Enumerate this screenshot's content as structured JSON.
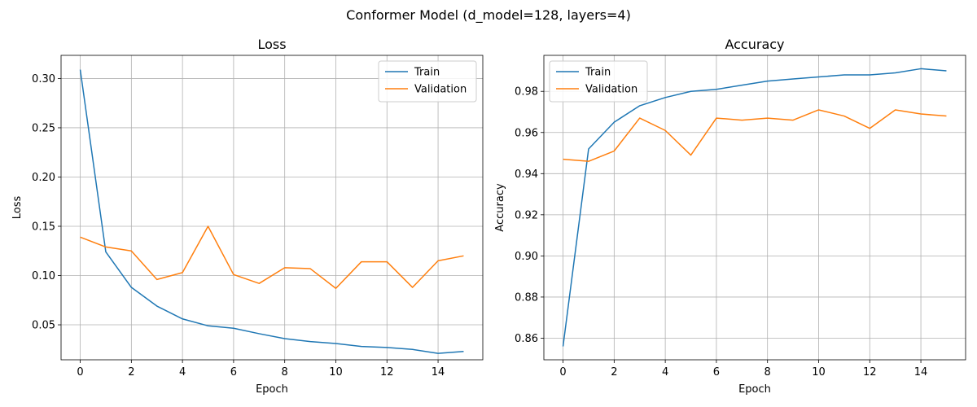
{
  "figure_title": "Conformer Model (d_model=128, layers=4)",
  "chart_data": [
    {
      "type": "line",
      "title": "Loss",
      "xlabel": "Epoch",
      "ylabel": "Loss",
      "x": [
        0,
        1,
        2,
        3,
        4,
        5,
        6,
        7,
        8,
        9,
        10,
        11,
        12,
        13,
        14,
        15
      ],
      "xlim": [
        -0.75,
        15.75
      ],
      "ylim": [
        0.0145,
        0.3235
      ],
      "xticks": [
        0,
        2,
        4,
        6,
        8,
        10,
        12,
        14
      ],
      "yticks": [
        0.05,
        0.1,
        0.15,
        0.2,
        0.25,
        0.3
      ],
      "ytick_labels": [
        "0.05",
        "0.10",
        "0.15",
        "0.20",
        "0.25",
        "0.30"
      ],
      "grid": true,
      "legend_position": "top-right",
      "series": [
        {
          "name": "Train",
          "color": "#1f77b4",
          "values": [
            0.309,
            0.124,
            0.088,
            0.069,
            0.056,
            0.049,
            0.0465,
            0.041,
            0.036,
            0.033,
            0.031,
            0.028,
            0.027,
            0.025,
            0.021,
            0.023
          ]
        },
        {
          "name": "Validation",
          "color": "#ff7f0e",
          "values": [
            0.139,
            0.129,
            0.125,
            0.096,
            0.103,
            0.15,
            0.101,
            0.092,
            0.108,
            0.107,
            0.087,
            0.114,
            0.114,
            0.088,
            0.115,
            0.12
          ]
        }
      ]
    },
    {
      "type": "line",
      "title": "Accuracy",
      "xlabel": "Epoch",
      "ylabel": "Accuracy",
      "x": [
        0,
        1,
        2,
        3,
        4,
        5,
        6,
        7,
        8,
        9,
        10,
        11,
        12,
        13,
        14,
        15
      ],
      "xlim": [
        -0.75,
        15.75
      ],
      "ylim": [
        0.8495,
        0.9975
      ],
      "xticks": [
        0,
        2,
        4,
        6,
        8,
        10,
        12,
        14
      ],
      "yticks": [
        0.86,
        0.88,
        0.9,
        0.92,
        0.94,
        0.96,
        0.98
      ],
      "ytick_labels": [
        "0.86",
        "0.88",
        "0.90",
        "0.92",
        "0.94",
        "0.96",
        "0.98"
      ],
      "grid": true,
      "legend_position": "top-left",
      "series": [
        {
          "name": "Train",
          "color": "#1f77b4",
          "values": [
            0.856,
            0.952,
            0.965,
            0.973,
            0.977,
            0.98,
            0.981,
            0.983,
            0.985,
            0.986,
            0.987,
            0.988,
            0.988,
            0.989,
            0.991,
            0.99
          ]
        },
        {
          "name": "Validation",
          "color": "#ff7f0e",
          "values": [
            0.947,
            0.946,
            0.951,
            0.967,
            0.961,
            0.949,
            0.967,
            0.966,
            0.967,
            0.966,
            0.971,
            0.968,
            0.962,
            0.971,
            0.969,
            0.968
          ]
        }
      ]
    }
  ]
}
